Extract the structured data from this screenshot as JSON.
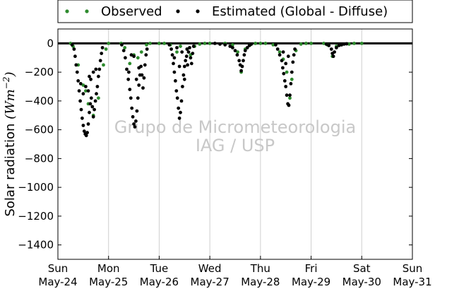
{
  "chart_data": {
    "type": "scatter",
    "title": "",
    "ylabel": "Solar radiation (W m⁻²)",
    "ylabel_main": "Solar radiation",
    "ylabel_unit_open": "(",
    "ylabel_unit_base": "Wm",
    "ylabel_unit_exp": "−2",
    "ylabel_unit_close": ")",
    "xlim": [
      0,
      7
    ],
    "ylim": [
      -1500,
      100
    ],
    "yticks": [
      0,
      -200,
      -400,
      -600,
      -800,
      -1000,
      -1200,
      -1400
    ],
    "xtick_days": [
      "Sun",
      "Mon",
      "Tue",
      "Wed",
      "Thu",
      "Fri",
      "Sat",
      "Sun"
    ],
    "xtick_dates": [
      "May-24",
      "May-25",
      "May-26",
      "May-27",
      "May-28",
      "May-29",
      "May-30",
      "May-31"
    ],
    "grid": true,
    "legend_position": "top-outside",
    "watermark_line1": "Grupo de Micrometeorologia",
    "watermark_line2": "IAG / USP",
    "series": [
      {
        "name": "Observed",
        "color": "#2e8b2e",
        "points": [
          [
            0.25,
            0
          ],
          [
            0.3,
            -20
          ],
          [
            0.4,
            -150
          ],
          [
            0.5,
            -290
          ],
          [
            0.55,
            -330
          ],
          [
            0.6,
            -420
          ],
          [
            0.7,
            -500
          ],
          [
            0.8,
            -380
          ],
          [
            0.9,
            -150
          ],
          [
            0.95,
            -40
          ],
          [
            1.0,
            0
          ],
          [
            1.25,
            0
          ],
          [
            1.32,
            -30
          ],
          [
            1.42,
            -140
          ],
          [
            1.5,
            -80
          ],
          [
            1.58,
            -100
          ],
          [
            1.65,
            -60
          ],
          [
            1.75,
            -10
          ],
          [
            1.82,
            0
          ],
          [
            2.0,
            0
          ],
          [
            2.1,
            0
          ],
          [
            2.22,
            -10
          ],
          [
            2.35,
            -60
          ],
          [
            2.42,
            -20
          ],
          [
            2.55,
            -40
          ],
          [
            2.62,
            -80
          ],
          [
            2.7,
            -20
          ],
          [
            2.8,
            -5
          ],
          [
            2.9,
            0
          ],
          [
            3.0,
            0
          ],
          [
            3.3,
            0
          ],
          [
            3.45,
            -10
          ],
          [
            3.55,
            -60
          ],
          [
            3.62,
            -200
          ],
          [
            3.7,
            -40
          ],
          [
            3.8,
            -10
          ],
          [
            3.9,
            0
          ],
          [
            4.0,
            0
          ],
          [
            4.1,
            0
          ],
          [
            4.25,
            -10
          ],
          [
            4.38,
            -60
          ],
          [
            4.45,
            -110
          ],
          [
            4.52,
            -200
          ],
          [
            4.58,
            -380
          ],
          [
            4.62,
            -250
          ],
          [
            4.7,
            -50
          ],
          [
            4.8,
            -5
          ],
          [
            4.9,
            0
          ],
          [
            5.0,
            0
          ],
          [
            5.25,
            0
          ],
          [
            5.32,
            -10
          ],
          [
            5.42,
            -90
          ],
          [
            5.5,
            -20
          ],
          [
            5.6,
            -10
          ],
          [
            5.75,
            -5
          ],
          [
            5.85,
            0
          ],
          [
            6.0,
            0
          ]
        ]
      },
      {
        "name": "Estimated (Global - Diffuse)",
        "color": "#000000",
        "points": [
          [
            0.28,
            -10
          ],
          [
            0.32,
            -40
          ],
          [
            0.34,
            -90
          ],
          [
            0.36,
            -150
          ],
          [
            0.38,
            -200
          ],
          [
            0.4,
            -260
          ],
          [
            0.42,
            -330
          ],
          [
            0.44,
            -400
          ],
          [
            0.46,
            -460
          ],
          [
            0.48,
            -520
          ],
          [
            0.5,
            -570
          ],
          [
            0.52,
            -610
          ],
          [
            0.54,
            -630
          ],
          [
            0.56,
            -640
          ],
          [
            0.58,
            -620
          ],
          [
            0.6,
            -560
          ],
          [
            0.62,
            -480
          ],
          [
            0.64,
            -420
          ],
          [
            0.66,
            -380
          ],
          [
            0.68,
            -440
          ],
          [
            0.7,
            -510
          ],
          [
            0.72,
            -460
          ],
          [
            0.74,
            -400
          ],
          [
            0.76,
            -350
          ],
          [
            0.78,
            -300
          ],
          [
            0.8,
            -230
          ],
          [
            0.82,
            -180
          ],
          [
            0.84,
            -120
          ],
          [
            0.86,
            -70
          ],
          [
            0.88,
            -30
          ],
          [
            0.55,
            -300
          ],
          [
            0.6,
            -330
          ],
          [
            0.65,
            -250
          ],
          [
            0.7,
            -200
          ],
          [
            0.75,
            -180
          ],
          [
            0.5,
            -350
          ],
          [
            0.45,
            -280
          ],
          [
            0.62,
            -230
          ],
          [
            1.26,
            -10
          ],
          [
            1.3,
            -50
          ],
          [
            1.33,
            -100
          ],
          [
            1.36,
            -180
          ],
          [
            1.39,
            -250
          ],
          [
            1.42,
            -320
          ],
          [
            1.44,
            -380
          ],
          [
            1.46,
            -450
          ],
          [
            1.48,
            -510
          ],
          [
            1.5,
            -560
          ],
          [
            1.52,
            -580
          ],
          [
            1.54,
            -540
          ],
          [
            1.56,
            -470
          ],
          [
            1.58,
            -380
          ],
          [
            1.6,
            -290
          ],
          [
            1.62,
            -220
          ],
          [
            1.64,
            -160
          ],
          [
            1.66,
            -220
          ],
          [
            1.68,
            -310
          ],
          [
            1.7,
            -240
          ],
          [
            1.72,
            -150
          ],
          [
            1.74,
            -80
          ],
          [
            1.76,
            -40
          ],
          [
            1.45,
            -80
          ],
          [
            1.5,
            -90
          ],
          [
            1.55,
            -250
          ],
          [
            1.6,
            -170
          ],
          [
            1.4,
            -200
          ],
          [
            2.2,
            -10
          ],
          [
            2.24,
            -40
          ],
          [
            2.26,
            -80
          ],
          [
            2.28,
            -140
          ],
          [
            2.3,
            -200
          ],
          [
            2.32,
            -260
          ],
          [
            2.34,
            -330
          ],
          [
            2.36,
            -380
          ],
          [
            2.38,
            -450
          ],
          [
            2.4,
            -520
          ],
          [
            2.42,
            -480
          ],
          [
            2.44,
            -400
          ],
          [
            2.46,
            -300
          ],
          [
            2.48,
            -220
          ],
          [
            2.5,
            -160
          ],
          [
            2.52,
            -120
          ],
          [
            2.54,
            -90
          ],
          [
            2.56,
            -150
          ],
          [
            2.58,
            -60
          ],
          [
            2.6,
            -30
          ],
          [
            2.62,
            -100
          ],
          [
            2.64,
            -140
          ],
          [
            2.66,
            -70
          ],
          [
            2.68,
            -20
          ],
          [
            2.3,
            -100
          ],
          [
            2.35,
            -30
          ],
          [
            2.45,
            -60
          ],
          [
            2.55,
            -40
          ],
          [
            2.5,
            -250
          ],
          [
            2.4,
            -160
          ],
          [
            3.1,
            0
          ],
          [
            3.2,
            -5
          ],
          [
            3.3,
            -10
          ],
          [
            3.4,
            -20
          ],
          [
            3.45,
            -30
          ],
          [
            3.5,
            -50
          ],
          [
            3.54,
            -80
          ],
          [
            3.58,
            -120
          ],
          [
            3.6,
            -150
          ],
          [
            3.62,
            -190
          ],
          [
            3.64,
            -160
          ],
          [
            3.66,
            -120
          ],
          [
            3.68,
            -80
          ],
          [
            3.7,
            -50
          ],
          [
            3.74,
            -30
          ],
          [
            3.78,
            -15
          ],
          [
            3.82,
            -5
          ],
          [
            4.3,
            -10
          ],
          [
            4.34,
            -40
          ],
          [
            4.38,
            -80
          ],
          [
            4.42,
            -120
          ],
          [
            4.44,
            -170
          ],
          [
            4.46,
            -210
          ],
          [
            4.48,
            -260
          ],
          [
            4.5,
            -300
          ],
          [
            4.52,
            -360
          ],
          [
            4.54,
            -420
          ],
          [
            4.56,
            -430
          ],
          [
            4.58,
            -360
          ],
          [
            4.6,
            -280
          ],
          [
            4.62,
            -200
          ],
          [
            4.64,
            -130
          ],
          [
            4.66,
            -80
          ],
          [
            4.68,
            -40
          ],
          [
            4.45,
            -60
          ],
          [
            4.5,
            -140
          ],
          [
            4.55,
            -90
          ],
          [
            5.3,
            -5
          ],
          [
            5.35,
            -15
          ],
          [
            5.4,
            -40
          ],
          [
            5.42,
            -70
          ],
          [
            5.44,
            -90
          ],
          [
            5.46,
            -60
          ],
          [
            5.5,
            -30
          ],
          [
            5.55,
            -15
          ],
          [
            5.6,
            -10
          ],
          [
            5.65,
            -5
          ],
          [
            5.7,
            -3
          ]
        ]
      }
    ]
  }
}
